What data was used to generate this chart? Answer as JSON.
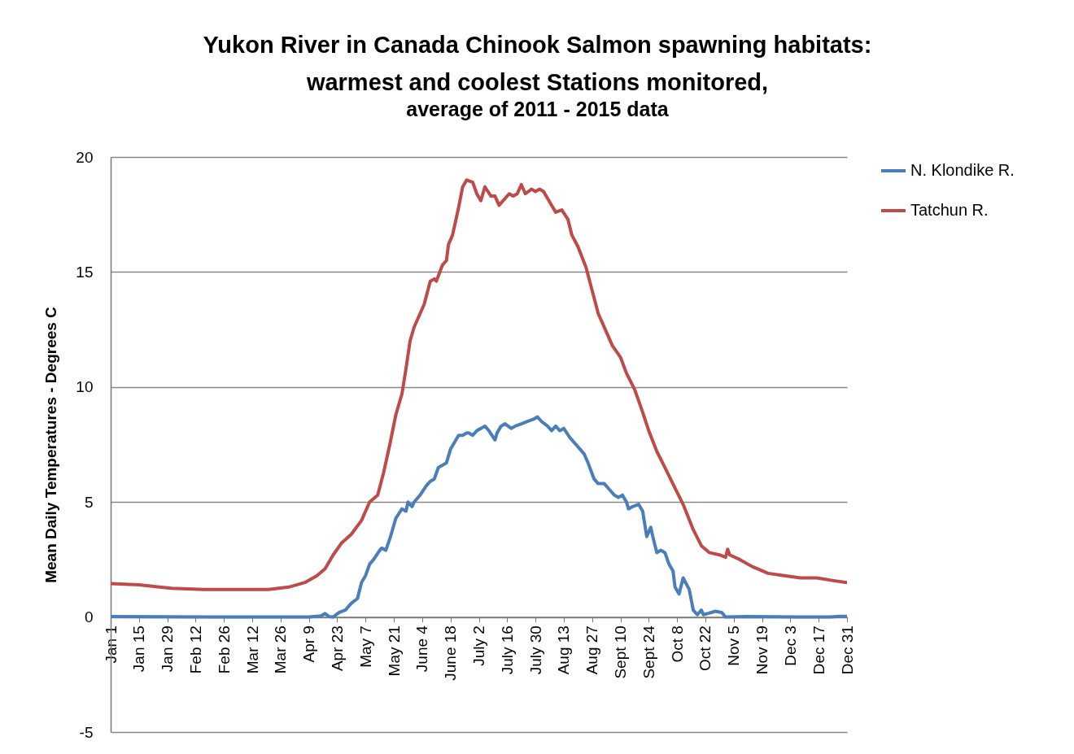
{
  "chart_data": {
    "type": "line",
    "title": [
      "Yukon River in Canada Chinook Salmon spawning habitats:",
      "warmest and coolest Stations monitored,"
    ],
    "subtitle": "average of 2011 - 2015 data",
    "ylabel": "Mean Daily Temperatures - Degrees C",
    "xlim": [
      "--01-01",
      "--12-31"
    ],
    "xticks": [
      {
        "value": "--01-01",
        "label": "Jan 1"
      },
      {
        "value": "--01-15",
        "label": "Jan 15"
      },
      {
        "value": "--01-29",
        "label": "Jan 29"
      },
      {
        "value": "--02-12",
        "label": "Feb 12"
      },
      {
        "value": "--02-26",
        "label": "Feb 26"
      },
      {
        "value": "--03-12",
        "label": "Mar 12"
      },
      {
        "value": "--03-26",
        "label": "Mar 26"
      },
      {
        "value": "--04-09",
        "label": "Apr 9"
      },
      {
        "value": "--04-23",
        "label": "Apr 23"
      },
      {
        "value": "--05-07",
        "label": "May 7"
      },
      {
        "value": "--05-21",
        "label": "May 21"
      },
      {
        "value": "--06-04",
        "label": "June 4"
      },
      {
        "value": "--06-18",
        "label": "June 18"
      },
      {
        "value": "--07-02",
        "label": "July 2"
      },
      {
        "value": "--07-16",
        "label": "July 16"
      },
      {
        "value": "--07-30",
        "label": "July 30"
      },
      {
        "value": "--08-13",
        "label": "Aug 13"
      },
      {
        "value": "--08-27",
        "label": "Aug 27"
      },
      {
        "value": "--09-10",
        "label": "Sept 10"
      },
      {
        "value": "--09-24",
        "label": "Sept 24"
      },
      {
        "value": "--10-08",
        "label": "Oct 8"
      },
      {
        "value": "--10-22",
        "label": "Oct 22"
      },
      {
        "value": "--11-05",
        "label": "Nov 5"
      },
      {
        "value": "--11-19",
        "label": "Nov 19"
      },
      {
        "value": "--12-03",
        "label": "Dec 3"
      },
      {
        "value": "--12-17",
        "label": "Dec 17"
      },
      {
        "value": "--12-31",
        "label": "Dec 31"
      }
    ],
    "ylim": [
      -5,
      20
    ],
    "yticks": [
      -5,
      0,
      5,
      10,
      15,
      20
    ],
    "grid": "y",
    "legend": "right",
    "marker": "none",
    "line_style": "solid",
    "series": [
      {
        "name": "N. Klondike R.",
        "color": "#4a7ebb",
        "x": [
          "--01-01",
          "--03-08",
          "--04-09",
          "--04-15",
          "--04-17",
          "--04-19",
          "--04-21",
          "--04-24",
          "--04-27",
          "--04-30",
          "--05-03",
          "--05-05",
          "--05-07",
          "--05-09",
          "--05-11",
          "--05-14",
          "--05-15",
          "--05-17",
          "--05-19",
          "--05-22",
          "--05-25",
          "--05-27",
          "--05-28",
          "--05-30",
          "--05-31",
          "--06-03",
          "--06-06",
          "--06-08",
          "--06-10",
          "--06-12",
          "--06-16",
          "--06-18",
          "--06-20",
          "--06-22",
          "--06-24",
          "--06-26",
          "--06-27",
          "--06-29",
          "--07-01",
          "--07-03",
          "--07-05",
          "--07-07",
          "--07-10",
          "--07-11",
          "--07-13",
          "--07-15",
          "--07-18",
          "--07-20",
          "--07-23",
          "--07-26",
          "--07-29",
          "--07-31",
          "--08-02",
          "--08-05",
          "--08-07",
          "--08-09",
          "--08-11",
          "--08-13",
          "--08-16",
          "--08-18",
          "--08-21",
          "--08-23",
          "--08-25",
          "--08-28",
          "--08-30",
          "--09-02",
          "--09-04",
          "--09-07",
          "--09-09",
          "--09-11",
          "--09-13",
          "--09-14",
          "--09-16",
          "--09-19",
          "--09-21",
          "--09-23",
          "--09-25",
          "--09-26",
          "--09-28",
          "--09-30",
          "--10-02",
          "--10-04",
          "--10-06",
          "--10-07",
          "--10-09",
          "--10-11",
          "--10-14",
          "--10-16",
          "--10-18",
          "--10-20",
          "--10-21",
          "--10-23",
          "--10-27",
          "--10-30",
          "--11-01",
          "--11-12",
          "--12-06",
          "--12-23",
          "--12-27",
          "--12-31"
        ],
        "values": [
          0.02,
          0,
          0,
          0.05,
          0.15,
          0.02,
          0,
          0.2,
          0.3,
          0.6,
          0.8,
          1.5,
          1.8,
          2.3,
          2.5,
          2.9,
          3,
          2.9,
          3.4,
          4.3,
          4.7,
          4.6,
          5,
          4.8,
          5,
          5.3,
          5.7,
          5.9,
          6,
          6.5,
          6.7,
          7.3,
          7.6,
          7.9,
          7.9,
          8,
          8,
          7.9,
          8.1,
          8.2,
          8.3,
          8.1,
          7.7,
          8,
          8.3,
          8.4,
          8.2,
          8.3,
          8.4,
          8.5,
          8.6,
          8.7,
          8.5,
          8.3,
          8.1,
          8.3,
          8.1,
          8.2,
          7.8,
          7.6,
          7.3,
          7.1,
          6.7,
          6,
          5.8,
          5.8,
          5.6,
          5.3,
          5.2,
          5.3,
          5,
          4.7,
          4.8,
          4.9,
          4.6,
          3.5,
          3.9,
          3.5,
          2.8,
          2.9,
          2.8,
          2.3,
          2,
          1.3,
          1,
          1.7,
          1.2,
          0.3,
          0.1,
          0.3,
          0.1,
          0.15,
          0.25,
          0.2,
          0,
          0.02,
          0,
          0,
          0.03,
          0.03
        ]
      },
      {
        "name": "Tatchun R.",
        "color": "#be4b48",
        "x": [
          "--01-01",
          "--01-15",
          "--01-31",
          "--02-16",
          "--03-04",
          "--03-20",
          "--03-30",
          "--04-07",
          "--04-13",
          "--04-17",
          "--04-21",
          "--04-25",
          "--04-30",
          "--05-05",
          "--05-09",
          "--05-13",
          "--05-16",
          "--05-19",
          "--05-22",
          "--05-25",
          "--05-27",
          "--05-29",
          "--05-31",
          "--06-02",
          "--06-05",
          "--06-08",
          "--06-10",
          "--06-11",
          "--06-14",
          "--06-16",
          "--06-17",
          "--06-19",
          "--06-22",
          "--06-24",
          "--06-26",
          "--06-29",
          "--07-01",
          "--07-03",
          "--07-05",
          "--07-08",
          "--07-10",
          "--07-12",
          "--07-15",
          "--07-17",
          "--07-19",
          "--07-21",
          "--07-23",
          "--07-25",
          "--07-28",
          "--07-30",
          "--08-01",
          "--08-03",
          "--08-05",
          "--08-07",
          "--08-09",
          "--08-12",
          "--08-15",
          "--08-17",
          "--08-20",
          "--08-24",
          "--08-27",
          "--08-30",
          "--09-03",
          "--09-06",
          "--09-10",
          "--09-13",
          "--09-17",
          "--09-21",
          "--09-24",
          "--09-28",
          "--10-02",
          "--10-07",
          "--10-11",
          "--10-16",
          "--10-20",
          "--10-24",
          "--10-29",
          "--11-01",
          "--11-02",
          "--11-03",
          "--11-08",
          "--11-14",
          "--11-22",
          "--11-30",
          "--12-08",
          "--12-16",
          "--12-23",
          "--12-31"
        ],
        "values": [
          1.45,
          1.4,
          1.25,
          1.2,
          1.2,
          1.2,
          1.3,
          1.5,
          1.8,
          2.1,
          2.7,
          3.2,
          3.6,
          4.2,
          5,
          5.3,
          6.3,
          7.5,
          8.8,
          9.7,
          10.8,
          12,
          12.6,
          13,
          13.6,
          14.6,
          14.7,
          14.6,
          15.3,
          15.5,
          16.2,
          16.6,
          17.8,
          18.7,
          19,
          18.9,
          18.4,
          18.1,
          18.7,
          18.3,
          18.3,
          17.9,
          18.2,
          18.4,
          18.3,
          18.4,
          18.8,
          18.4,
          18.6,
          18.5,
          18.6,
          18.5,
          18.2,
          17.9,
          17.6,
          17.7,
          17.3,
          16.6,
          16.1,
          15.2,
          14.2,
          13.2,
          12.4,
          11.8,
          11.3,
          10.6,
          9.9,
          8.9,
          8.1,
          7.2,
          6.5,
          5.6,
          4.9,
          3.8,
          3.1,
          2.8,
          2.7,
          2.6,
          2.95,
          2.7,
          2.5,
          2.2,
          1.9,
          1.8,
          1.7,
          1.7,
          1.6,
          1.5
        ]
      }
    ]
  }
}
